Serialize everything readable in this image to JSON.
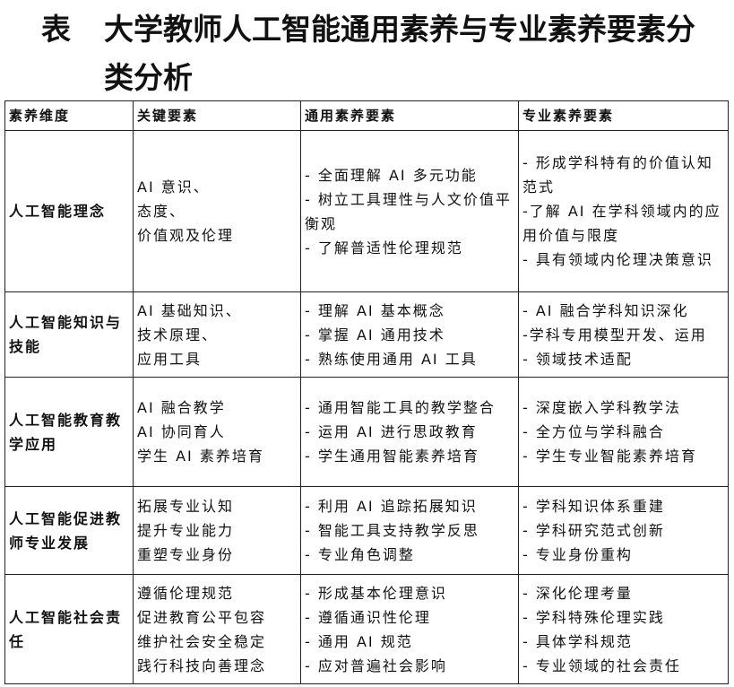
{
  "title": {
    "label": "表",
    "text": "大学教师人工智能通用素养与专业素养要素分类分析"
  },
  "table": {
    "header": [
      "素养维度",
      "关键要素",
      "通用素养要素",
      "专业素养要素"
    ],
    "rows": [
      {
        "dimension": "人工智能理念",
        "key": [
          "AI 意识、",
          "态度、",
          "价值观及伦理"
        ],
        "general": [
          "- 全面理解 AI 多元功能",
          "- 树立工具理性与人文价值平衡观",
          "- 了解普适性伦理规范"
        ],
        "professional": [
          "- 形成学科特有的价值认知范式",
          "-了解 AI 在学科领域内的应用价值与限度",
          "- 具有领域内伦理决策意识"
        ]
      },
      {
        "dimension": "人工智能知识与技能",
        "key": [
          "AI 基础知识、",
          "技术原理、",
          "应用工具"
        ],
        "general": [
          "- 理解 AI 基本概念",
          "- 掌握 AI 通用技术",
          "- 熟练使用通用 AI 工具"
        ],
        "professional": [
          "- AI 融合学科知识深化",
          "-学科专用模型开发、运用",
          "- 领域技术适配"
        ]
      },
      {
        "dimension": "人工智能教育教学应用",
        "key": [
          "AI 融合教学",
          "AI 协同育人",
          "学生 AI 素养培育"
        ],
        "general": [
          "- 通用智能工具的教学整合",
          "- 运用 AI 进行思政教育",
          "- 学生通用智能素养培育"
        ],
        "professional": [
          "- 深度嵌入学科教学法",
          "- 全方位与学科融合",
          "- 学生专业智能素养培育"
        ]
      },
      {
        "dimension": "人工智能促进教师专业发展",
        "key": [
          "拓展专业认知",
          "提升专业能力",
          "重塑专业身份"
        ],
        "general": [
          "- 利用 AI 追踪拓展知识",
          "- 智能工具支持教学反思",
          "- 专业角色调整"
        ],
        "professional": [
          "- 学科知识体系重建",
          "- 学科研究范式创新",
          "- 专业身份重构"
        ]
      },
      {
        "dimension": "人工智能社会责任",
        "key": [
          "遵循伦理规范",
          "促进教育公平包容",
          "维护社会安全稳定",
          "践行科技向善理念"
        ],
        "general": [
          "- 形成基本伦理意识",
          "- 遵循通识性伦理",
          "- 通用 AI 规范",
          "- 应对普遍社会影响"
        ],
        "professional": [
          "- 深化伦理考量",
          "- 学科特殊伦理实践",
          "- 具体学科规范",
          "- 专业领域的社会责任"
        ]
      }
    ]
  }
}
